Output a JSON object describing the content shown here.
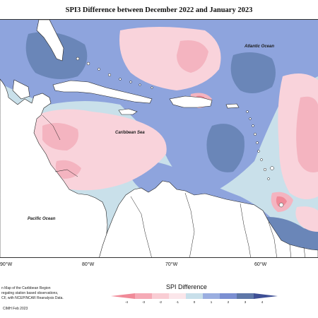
{
  "title": "SPI3 Difference between December 2022 and January 2023",
  "labels": {
    "atlantic": "Atlantic Ocean",
    "caribbean": "Caribbean Sea",
    "pacific": "Pacific Ocean"
  },
  "longitudes": [
    "90°W",
    "80°W",
    "70°W",
    "60°W"
  ],
  "note_lines": [
    "n Map of the Caribbean Region",
    "regating station based observations,",
    "CF, with NCEP/NCAR Reanalysis Data."
  ],
  "credit": "CIMH Feb 2023",
  "legend": {
    "title": "SPI Difference",
    "ticks": [
      "-4",
      "-3",
      "-2",
      "-1",
      "0",
      "1",
      "2",
      "3",
      "4"
    ],
    "colors": [
      "#f08a98",
      "#f5aab6",
      "#f9cdd4",
      "#fbe6ea",
      "#c8dfea",
      "#9aaee0",
      "#7b8fd2",
      "#5e77a8",
      "#3e4f95"
    ]
  }
}
